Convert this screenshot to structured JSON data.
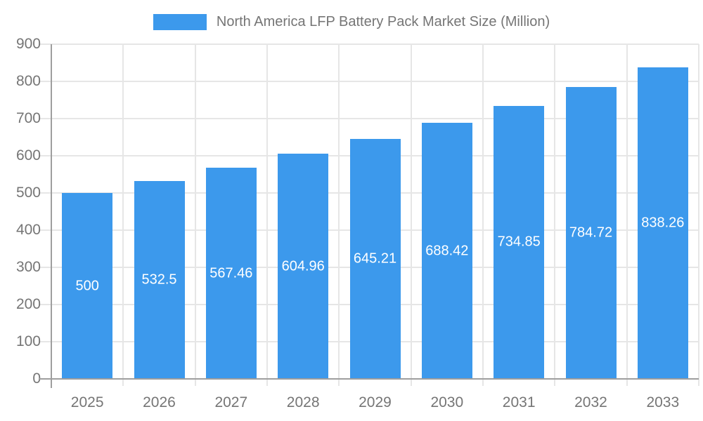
{
  "chart_data": {
    "type": "bar",
    "title": "North America LFP Battery Pack Market Size (Million)",
    "categories": [
      "2025",
      "2026",
      "2027",
      "2028",
      "2029",
      "2030",
      "2031",
      "2032",
      "2033"
    ],
    "values": [
      500,
      532.5,
      567.46,
      604.96,
      645.21,
      688.42,
      734.85,
      784.72,
      838.26
    ],
    "value_labels": [
      "500",
      "532.5",
      "567.46",
      "604.96",
      "645.21",
      "688.42",
      "734.85",
      "784.72",
      "838.26"
    ],
    "xlabel": "",
    "ylabel": "",
    "ylim": [
      0,
      900
    ],
    "ytick_step": 100,
    "yticks": [
      0,
      100,
      200,
      300,
      400,
      500,
      600,
      700,
      800,
      900
    ],
    "grid": true,
    "legend_position": "top",
    "value_label_position": "inside-center",
    "colors": {
      "bar": "#3c99ec",
      "grid": "#e6e6e6",
      "axis": "#9e9e9e",
      "tick_label": "#757575",
      "legend_label": "#757575",
      "value_label": "#ffffff",
      "background": "#ffffff"
    }
  }
}
